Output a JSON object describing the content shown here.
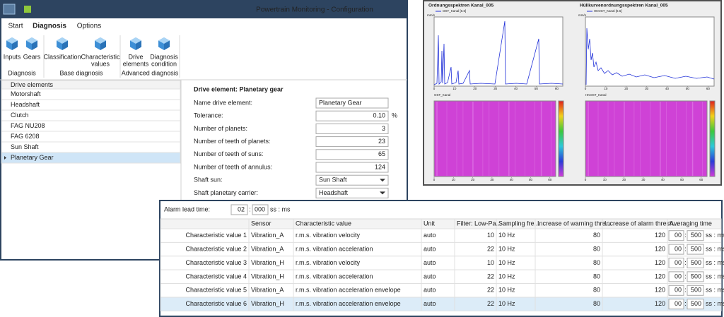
{
  "main_window": {
    "title": "Powertrain Monitoring - Configuration",
    "tabs": [
      "Start",
      "Diagnosis",
      "Options"
    ],
    "active_tab": 1,
    "ribbon_groups": [
      {
        "label": "Diagnosis",
        "buttons": [
          {
            "lines": [
              "Inputs"
            ]
          },
          {
            "lines": [
              "Gears"
            ]
          }
        ]
      },
      {
        "label": "Base diagnosis",
        "buttons": [
          {
            "lines": [
              "Classification"
            ]
          },
          {
            "lines": [
              "Characteristic",
              "values"
            ]
          }
        ]
      },
      {
        "label": "Advanced diagnosis",
        "buttons": [
          {
            "lines": [
              "Drive",
              "elements"
            ]
          },
          {
            "lines": [
              "Diagnosis",
              "condition"
            ]
          }
        ]
      }
    ],
    "drive_elements": {
      "header": "Drive elements",
      "items": [
        "Motorshaft",
        "Headshaft",
        "Clutch",
        "FAG NU208",
        "FAG 6208",
        "Sun Shaft",
        "Planetary Gear"
      ],
      "selected_index": 6
    },
    "detail": {
      "heading": "Drive element: Planetary gear",
      "fields": [
        {
          "label": "Name drive element:",
          "value": "Planetary Gear"
        },
        {
          "label": "Tolerance:",
          "value": "0.10",
          "unit": "%"
        },
        {
          "label": "Number of planets:",
          "value": 3
        },
        {
          "label": "Number of teeth of planets:",
          "value": 23
        },
        {
          "label": "Number of teeth of suns:",
          "value": 65
        },
        {
          "label": "Number of teeth of annulus:",
          "value": 124
        },
        {
          "label": "Shaft sun:",
          "value": "Sun Shaft",
          "dropdown": true
        },
        {
          "label": "Shaft planetary carrier:",
          "value": "Headshaft",
          "dropdown": true
        }
      ]
    }
  },
  "spectra_window": {
    "charts": [
      {
        "title": "Ordnungsspektren Kanal_005",
        "legend": "OST_Kanal [6.6]",
        "y_unit": "mm/s",
        "heatmap_label": "OST_Kanal",
        "xlim": [
          0,
          63
        ],
        "xticks": [
          0,
          10,
          20,
          30,
          40,
          50,
          60
        ]
      },
      {
        "title": "Hüllkurvenordnungsspektren Kanal_005",
        "legend": "HKOST_Kanal [6.6]",
        "y_unit": "mm/s",
        "heatmap_label": "HKOST_Kanal",
        "xlim": [
          0,
          63
        ],
        "xticks": [
          0,
          10,
          20,
          30,
          40,
          50,
          60
        ]
      }
    ]
  },
  "cv_table": {
    "alarm_lead_time": {
      "label": "Alarm lead time:",
      "seconds": "02",
      "ms": "000"
    },
    "separator": ":",
    "time_unit": "ss : ms",
    "columns": [
      "Sensor",
      "Characteristic value",
      "Unit",
      "Filter: Low-Pa...",
      "Sampling fre...",
      "Increase of warning thre...",
      "Increase of alarm thresh...",
      "Averaging time"
    ],
    "rows": [
      {
        "name": "Characteristic value 1",
        "sensor": "Vibration_A",
        "characteristic": "r.m.s. vibration velocity",
        "unit": "auto",
        "filter": 10,
        "sampling": "10 Hz",
        "warning": 80,
        "alarm": 120,
        "avg_s": "00",
        "avg_ms": "500"
      },
      {
        "name": "Characteristic value 2",
        "sensor": "Vibration_A",
        "characteristic": "r.m.s. vibration acceleration",
        "unit": "auto",
        "filter": 22,
        "sampling": "10 Hz",
        "warning": 80,
        "alarm": 120,
        "avg_s": "00",
        "avg_ms": "500"
      },
      {
        "name": "Characteristic value 3",
        "sensor": "Vibration_H",
        "characteristic": "r.m.s. vibration velocity",
        "unit": "auto",
        "filter": 10,
        "sampling": "10 Hz",
        "warning": 80,
        "alarm": 120,
        "avg_s": "00",
        "avg_ms": "500"
      },
      {
        "name": "Characteristic value 4",
        "sensor": "Vibration_H",
        "characteristic": "r.m.s. vibration acceleration",
        "unit": "auto",
        "filter": 22,
        "sampling": "10 Hz",
        "warning": 80,
        "alarm": 120,
        "avg_s": "00",
        "avg_ms": "500"
      },
      {
        "name": "Characteristic value 5",
        "sensor": "Vibration_A",
        "characteristic": "r.m.s. vibration acceleration envelope",
        "unit": "auto",
        "filter": 22,
        "sampling": "10 Hz",
        "warning": 80,
        "alarm": 120,
        "avg_s": "00",
        "avg_ms": "500"
      },
      {
        "name": "Characteristic value 6",
        "sensor": "Vibration_H",
        "characteristic": "r.m.s. vibration acceleration envelope",
        "unit": "auto",
        "filter": 22,
        "sampling": "10 Hz",
        "warning": 80,
        "alarm": 120,
        "avg_s": "00",
        "avg_ms": "500",
        "selected": true
      }
    ]
  }
}
